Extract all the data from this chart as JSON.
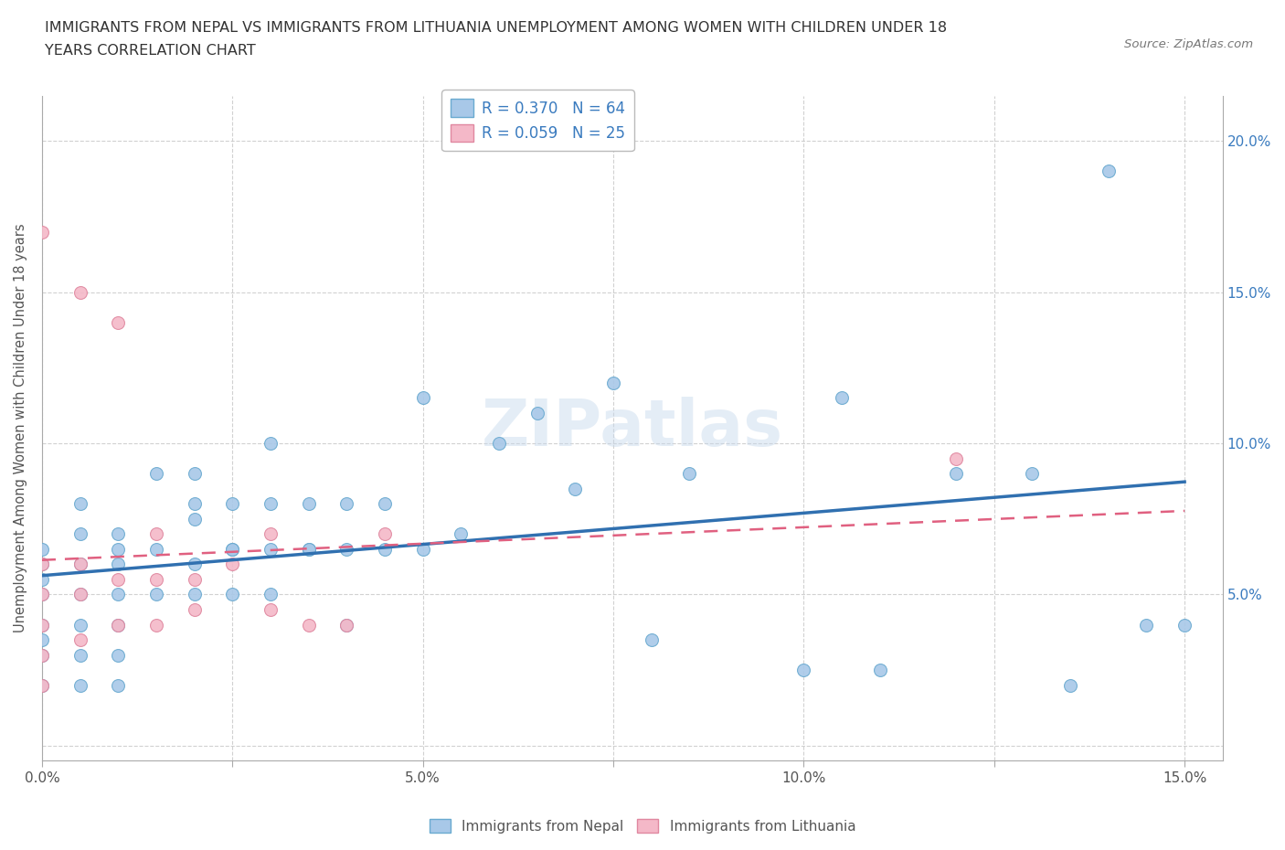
{
  "title_line1": "IMMIGRANTS FROM NEPAL VS IMMIGRANTS FROM LITHUANIA UNEMPLOYMENT AMONG WOMEN WITH CHILDREN UNDER 18",
  "title_line2": "YEARS CORRELATION CHART",
  "source": "Source: ZipAtlas.com",
  "ylabel": "Unemployment Among Women with Children Under 18 years",
  "xlim": [
    0.0,
    0.155
  ],
  "ylim": [
    -0.005,
    0.215
  ],
  "xticks": [
    0.0,
    0.025,
    0.05,
    0.075,
    0.1,
    0.125,
    0.15
  ],
  "xticklabels": [
    "0.0%",
    "",
    "5.0%",
    "",
    "10.0%",
    "",
    "15.0%"
  ],
  "yticks": [
    0.0,
    0.05,
    0.1,
    0.15,
    0.2
  ],
  "yticklabels_right": [
    "",
    "5.0%",
    "10.0%",
    "15.0%",
    "20.0%"
  ],
  "nepal_color": "#A8C8E8",
  "nepal_edge": "#6AAAD0",
  "lithuania_color": "#F4B8C8",
  "lithuania_edge": "#E088A0",
  "nepal_line_color": "#3070B0",
  "lithuania_line_color": "#E06080",
  "nepal_R": 0.37,
  "nepal_N": 64,
  "lithuania_R": 0.059,
  "lithuania_N": 25,
  "watermark": "ZIPatlas",
  "nepal_x": [
    0.0,
    0.0,
    0.0,
    0.0,
    0.0,
    0.0,
    0.0,
    0.0,
    0.005,
    0.005,
    0.005,
    0.005,
    0.005,
    0.005,
    0.005,
    0.01,
    0.01,
    0.01,
    0.01,
    0.01,
    0.01,
    0.01,
    0.015,
    0.015,
    0.015,
    0.02,
    0.02,
    0.02,
    0.02,
    0.025,
    0.025,
    0.025,
    0.03,
    0.03,
    0.03,
    0.035,
    0.035,
    0.04,
    0.04,
    0.045,
    0.045,
    0.05,
    0.05,
    0.055,
    0.06,
    0.065,
    0.07,
    0.075,
    0.08,
    0.085,
    0.1,
    0.105,
    0.11,
    0.12,
    0.13,
    0.135,
    0.14,
    0.145,
    0.15,
    0.02,
    0.025,
    0.03,
    0.035,
    0.04
  ],
  "nepal_y": [
    0.02,
    0.03,
    0.035,
    0.04,
    0.05,
    0.055,
    0.06,
    0.065,
    0.02,
    0.03,
    0.04,
    0.05,
    0.06,
    0.07,
    0.08,
    0.02,
    0.03,
    0.04,
    0.05,
    0.06,
    0.065,
    0.07,
    0.05,
    0.065,
    0.09,
    0.05,
    0.06,
    0.075,
    0.09,
    0.05,
    0.065,
    0.08,
    0.05,
    0.065,
    0.1,
    0.065,
    0.08,
    0.065,
    0.08,
    0.065,
    0.08,
    0.065,
    0.115,
    0.07,
    0.1,
    0.11,
    0.085,
    0.12,
    0.035,
    0.09,
    0.025,
    0.115,
    0.025,
    0.09,
    0.09,
    0.02,
    0.19,
    0.04,
    0.04,
    0.08,
    0.065,
    0.08,
    0.065,
    0.04
  ],
  "lithuania_x": [
    0.0,
    0.0,
    0.0,
    0.0,
    0.0,
    0.0,
    0.005,
    0.005,
    0.005,
    0.005,
    0.01,
    0.01,
    0.01,
    0.015,
    0.015,
    0.015,
    0.02,
    0.02,
    0.025,
    0.03,
    0.03,
    0.035,
    0.04,
    0.045,
    0.12
  ],
  "lithuania_y": [
    0.02,
    0.03,
    0.04,
    0.05,
    0.06,
    0.17,
    0.035,
    0.05,
    0.06,
    0.15,
    0.04,
    0.055,
    0.14,
    0.04,
    0.055,
    0.07,
    0.045,
    0.055,
    0.06,
    0.045,
    0.07,
    0.04,
    0.04,
    0.07,
    0.095
  ]
}
